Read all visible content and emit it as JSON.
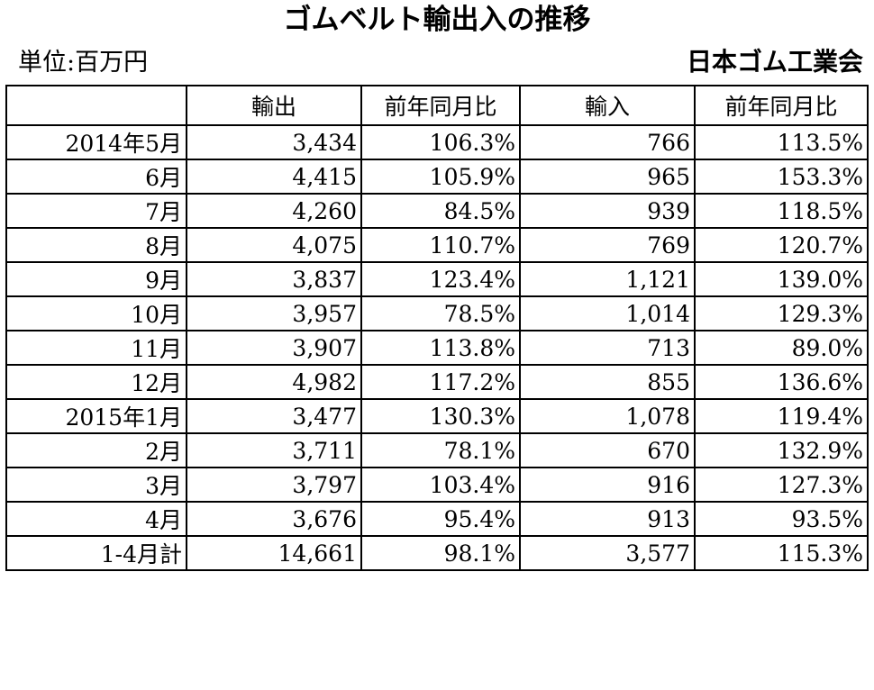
{
  "title": "ゴムベルト輸出入の推移",
  "unit": "単位:百万円",
  "organization": "日本ゴム工業会",
  "table": {
    "headers": [
      "",
      "輸出",
      "前年同月比",
      "輸入",
      "前年同月比"
    ],
    "rows": [
      [
        "2014年5月",
        "3,434",
        "106.3%",
        "766",
        "113.5%"
      ],
      [
        "6月",
        "4,415",
        "105.9%",
        "965",
        "153.3%"
      ],
      [
        "7月",
        "4,260",
        "84.5%",
        "939",
        "118.5%"
      ],
      [
        "8月",
        "4,075",
        "110.7%",
        "769",
        "120.7%"
      ],
      [
        "9月",
        "3,837",
        "123.4%",
        "1,121",
        "139.0%"
      ],
      [
        "10月",
        "3,957",
        "78.5%",
        "1,014",
        "129.3%"
      ],
      [
        "11月",
        "3,907",
        "113.8%",
        "713",
        "89.0%"
      ],
      [
        "12月",
        "4,982",
        "117.2%",
        "855",
        "136.6%"
      ],
      [
        "2015年1月",
        "3,477",
        "130.3%",
        "1,078",
        "119.4%"
      ],
      [
        "2月",
        "3,711",
        "78.1%",
        "670",
        "132.9%"
      ],
      [
        "3月",
        "3,797",
        "103.4%",
        "916",
        "127.3%"
      ],
      [
        "4月",
        "3,676",
        "95.4%",
        "913",
        "93.5%"
      ],
      [
        "1-4月計",
        "14,661",
        "98.1%",
        "3,577",
        "115.3%"
      ]
    ]
  }
}
